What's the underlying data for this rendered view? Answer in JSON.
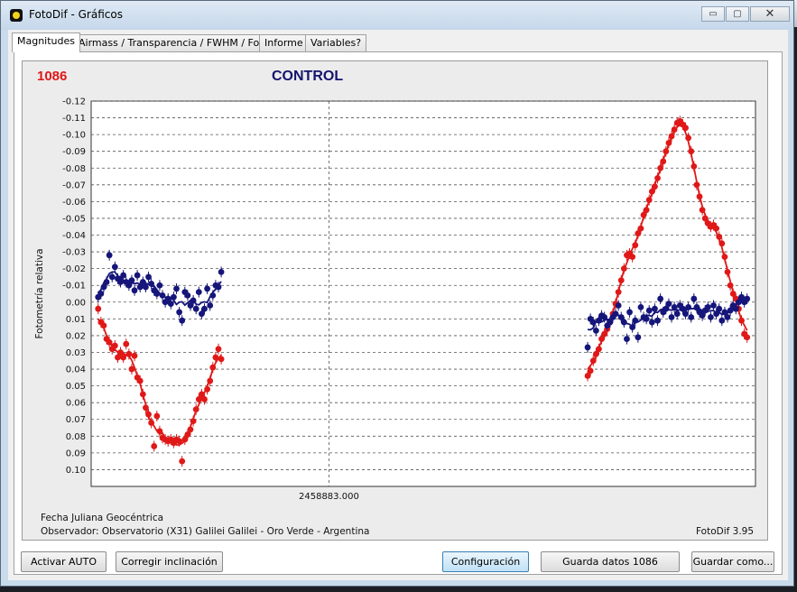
{
  "window": {
    "title": "FotoDif - Gráficos",
    "minimize_label": "▭",
    "maximize_label": "▢",
    "close_label": "✕"
  },
  "tabs": [
    {
      "label": "Magnitudes"
    },
    {
      "label": "Airmass / Transparencia / FWHM / Fondo"
    },
    {
      "label": "Informe"
    },
    {
      "label": "Variables?"
    }
  ],
  "chart_header": {
    "star_id": "1086",
    "title": "CONTROL"
  },
  "footer": {
    "axis_caption": "Fecha Juliana Geocéntrica",
    "observer": "Observador: Observatorio (X31) Galilei Galilei - Oro Verde - Argentina",
    "version": "FotoDif 3.95"
  },
  "buttons": {
    "activar_auto": "Activar AUTO",
    "corregir": "Corregir inclinación",
    "configuracion": "Configuración",
    "guarda_datos": "Guarda datos 1086",
    "guardar_como": "Guardar como..."
  },
  "colors": {
    "target": "#e01818",
    "comparison": "#15157a",
    "grid": "#555555"
  },
  "chart_data": {
    "type": "scatter",
    "title": "CONTROL",
    "xlabel": "",
    "ylabel": "Fotometría relativa",
    "x_tick_label": "2458883.000",
    "ylim": [
      0.11,
      -0.12
    ],
    "y_axis_inverted": true,
    "y_ticks": [
      "-0.12",
      "-0.11",
      "-0.10",
      "-0.09",
      "-0.08",
      "-0.07",
      "-0.06",
      "-0.05",
      "-0.04",
      "-0.03",
      "-0.02",
      "-0.01",
      "0.00",
      "0.01",
      "0.02",
      "0.03",
      "0.04",
      "0.05",
      "0.06",
      "0.07",
      "0.08",
      "0.09",
      "0.10"
    ],
    "grid": true,
    "series": [
      {
        "name": "",
        "color": "#e01818",
        "points": [
          [
            0.0,
            0.004
          ],
          [
            0.4,
            0.012
          ],
          [
            0.8,
            0.014
          ],
          [
            1.2,
            0.022
          ],
          [
            1.6,
            0.024
          ],
          [
            2.0,
            0.028
          ],
          [
            2.4,
            0.026
          ],
          [
            2.8,
            0.033
          ],
          [
            3.2,
            0.03
          ],
          [
            3.6,
            0.033
          ],
          [
            4.0,
            0.025
          ],
          [
            4.4,
            0.031
          ],
          [
            4.8,
            0.04
          ],
          [
            5.2,
            0.032
          ],
          [
            5.6,
            0.045
          ],
          [
            6.0,
            0.047
          ],
          [
            6.4,
            0.055
          ],
          [
            6.8,
            0.063
          ],
          [
            7.2,
            0.067
          ],
          [
            7.6,
            0.072
          ],
          [
            8.0,
            0.086
          ],
          [
            8.4,
            0.068
          ],
          [
            8.8,
            0.077
          ],
          [
            9.2,
            0.081
          ],
          [
            9.6,
            0.082
          ],
          [
            10.0,
            0.083
          ],
          [
            10.4,
            0.082
          ],
          [
            10.8,
            0.084
          ],
          [
            11.2,
            0.082
          ],
          [
            11.6,
            0.083
          ],
          [
            12.0,
            0.095
          ],
          [
            12.4,
            0.082
          ],
          [
            12.8,
            0.079
          ],
          [
            13.2,
            0.076
          ],
          [
            13.6,
            0.071
          ],
          [
            14.0,
            0.064
          ],
          [
            14.4,
            0.058
          ],
          [
            14.8,
            0.055
          ],
          [
            15.2,
            0.058
          ],
          [
            15.6,
            0.052
          ],
          [
            16.0,
            0.047
          ],
          [
            16.4,
            0.039
          ],
          [
            16.8,
            0.033
          ],
          [
            17.2,
            0.028
          ],
          [
            17.6,
            0.034
          ],
          [
            70.0,
            0.044
          ],
          [
            70.4,
            0.041
          ],
          [
            70.8,
            0.035
          ],
          [
            71.2,
            0.031
          ],
          [
            71.6,
            0.028
          ],
          [
            72.0,
            0.022
          ],
          [
            72.4,
            0.019
          ],
          [
            72.8,
            0.016
          ],
          [
            73.2,
            0.012
          ],
          [
            73.6,
            0.007
          ],
          [
            74.0,
            0.001
          ],
          [
            74.4,
            -0.006
          ],
          [
            74.8,
            -0.013
          ],
          [
            75.2,
            -0.02
          ],
          [
            75.6,
            -0.028
          ],
          [
            76.0,
            -0.029
          ],
          [
            76.4,
            -0.027
          ],
          [
            76.8,
            -0.034
          ],
          [
            77.2,
            -0.041
          ],
          [
            77.6,
            -0.044
          ],
          [
            78.0,
            -0.052
          ],
          [
            78.4,
            -0.055
          ],
          [
            78.8,
            -0.061
          ],
          [
            79.2,
            -0.066
          ],
          [
            79.6,
            -0.069
          ],
          [
            80.0,
            -0.074
          ],
          [
            80.4,
            -0.08
          ],
          [
            80.8,
            -0.084
          ],
          [
            81.2,
            -0.09
          ],
          [
            81.6,
            -0.095
          ],
          [
            82.0,
            -0.099
          ],
          [
            82.4,
            -0.103
          ],
          [
            82.8,
            -0.107
          ],
          [
            83.2,
            -0.108
          ],
          [
            83.6,
            -0.106
          ],
          [
            84.0,
            -0.104
          ],
          [
            84.4,
            -0.098
          ],
          [
            84.8,
            -0.09
          ],
          [
            85.2,
            -0.081
          ],
          [
            85.6,
            -0.07
          ],
          [
            86.0,
            -0.063
          ],
          [
            86.4,
            -0.055
          ],
          [
            86.8,
            -0.05
          ],
          [
            87.2,
            -0.047
          ],
          [
            87.6,
            -0.045
          ],
          [
            88.0,
            -0.046
          ],
          [
            88.4,
            -0.044
          ],
          [
            88.8,
            -0.039
          ],
          [
            89.2,
            -0.035
          ],
          [
            89.6,
            -0.027
          ],
          [
            90.0,
            -0.018
          ],
          [
            90.4,
            -0.01
          ],
          [
            90.8,
            -0.005
          ],
          [
            91.2,
            -0.002
          ],
          [
            91.6,
            0.004
          ],
          [
            92.0,
            0.011
          ],
          [
            92.4,
            0.019
          ],
          [
            92.8,
            0.021
          ]
        ]
      },
      {
        "name": "",
        "color": "#15157a",
        "points": [
          [
            0.0,
            -0.003
          ],
          [
            0.4,
            -0.005
          ],
          [
            0.8,
            -0.009
          ],
          [
            1.2,
            -0.012
          ],
          [
            1.6,
            -0.028
          ],
          [
            2.0,
            -0.015
          ],
          [
            2.4,
            -0.021
          ],
          [
            2.8,
            -0.014
          ],
          [
            3.2,
            -0.012
          ],
          [
            3.6,
            -0.016
          ],
          [
            4.0,
            -0.012
          ],
          [
            4.4,
            -0.01
          ],
          [
            4.8,
            -0.013
          ],
          [
            5.2,
            -0.007
          ],
          [
            5.6,
            -0.016
          ],
          [
            6.0,
            -0.009
          ],
          [
            6.4,
            -0.012
          ],
          [
            6.8,
            -0.009
          ],
          [
            7.2,
            -0.015
          ],
          [
            7.6,
            -0.011
          ],
          [
            8.0,
            -0.007
          ],
          [
            8.4,
            -0.005
          ],
          [
            8.8,
            -0.01
          ],
          [
            9.2,
            -0.004
          ],
          [
            9.6,
            0.0
          ],
          [
            10.0,
            -0.002
          ],
          [
            10.4,
            0.001
          ],
          [
            10.8,
            -0.003
          ],
          [
            11.2,
            -0.008
          ],
          [
            11.6,
            0.006
          ],
          [
            12.0,
            0.011
          ],
          [
            12.4,
            -0.006
          ],
          [
            12.8,
            -0.004
          ],
          [
            13.2,
            0.002
          ],
          [
            13.6,
            -0.001
          ],
          [
            14.0,
            0.004
          ],
          [
            14.4,
            -0.006
          ],
          [
            14.8,
            0.007
          ],
          [
            15.2,
            0.004
          ],
          [
            15.6,
            -0.008
          ],
          [
            16.0,
            0.002
          ],
          [
            16.4,
            -0.004
          ],
          [
            16.8,
            -0.01
          ],
          [
            17.2,
            -0.009
          ],
          [
            17.6,
            -0.018
          ],
          [
            70.0,
            0.027
          ],
          [
            70.4,
            0.01
          ],
          [
            70.8,
            0.012
          ],
          [
            71.2,
            0.017
          ],
          [
            71.6,
            0.011
          ],
          [
            72.0,
            0.008
          ],
          [
            72.4,
            0.009
          ],
          [
            72.8,
            0.014
          ],
          [
            73.2,
            0.012
          ],
          [
            73.6,
            0.009
          ],
          [
            74.0,
            0.007
          ],
          [
            74.4,
            0.002
          ],
          [
            74.8,
            0.009
          ],
          [
            75.2,
            0.012
          ],
          [
            75.6,
            0.022
          ],
          [
            76.0,
            0.006
          ],
          [
            76.4,
            0.015
          ],
          [
            76.8,
            0.011
          ],
          [
            77.2,
            0.021
          ],
          [
            77.6,
            0.003
          ],
          [
            78.0,
            0.009
          ],
          [
            78.4,
            0.01
          ],
          [
            78.8,
            0.005
          ],
          [
            79.2,
            0.012
          ],
          [
            79.6,
            0.004
          ],
          [
            80.0,
            0.011
          ],
          [
            80.4,
            -0.002
          ],
          [
            80.8,
            0.006
          ],
          [
            81.2,
            0.004
          ],
          [
            81.6,
            0.001
          ],
          [
            82.0,
            0.009
          ],
          [
            82.4,
            0.003
          ],
          [
            82.8,
            0.007
          ],
          [
            83.2,
            0.002
          ],
          [
            83.6,
            0.004
          ],
          [
            84.0,
            0.007
          ],
          [
            84.4,
            0.003
          ],
          [
            84.8,
            0.009
          ],
          [
            85.2,
            -0.002
          ],
          [
            85.6,
            0.003
          ],
          [
            86.0,
            0.006
          ],
          [
            86.4,
            0.008
          ],
          [
            86.8,
            0.005
          ],
          [
            87.2,
            0.003
          ],
          [
            87.6,
            0.009
          ],
          [
            88.0,
            0.002
          ],
          [
            88.4,
            0.007
          ],
          [
            88.8,
            0.004
          ],
          [
            89.2,
            0.011
          ],
          [
            89.6,
            0.006
          ],
          [
            90.0,
            0.009
          ],
          [
            90.4,
            0.005
          ],
          [
            90.8,
            0.002
          ],
          [
            91.2,
            0.004
          ],
          [
            91.6,
            0.0
          ],
          [
            92.0,
            -0.003
          ],
          [
            92.4,
            0.0
          ],
          [
            92.8,
            -0.002
          ]
        ]
      }
    ]
  }
}
